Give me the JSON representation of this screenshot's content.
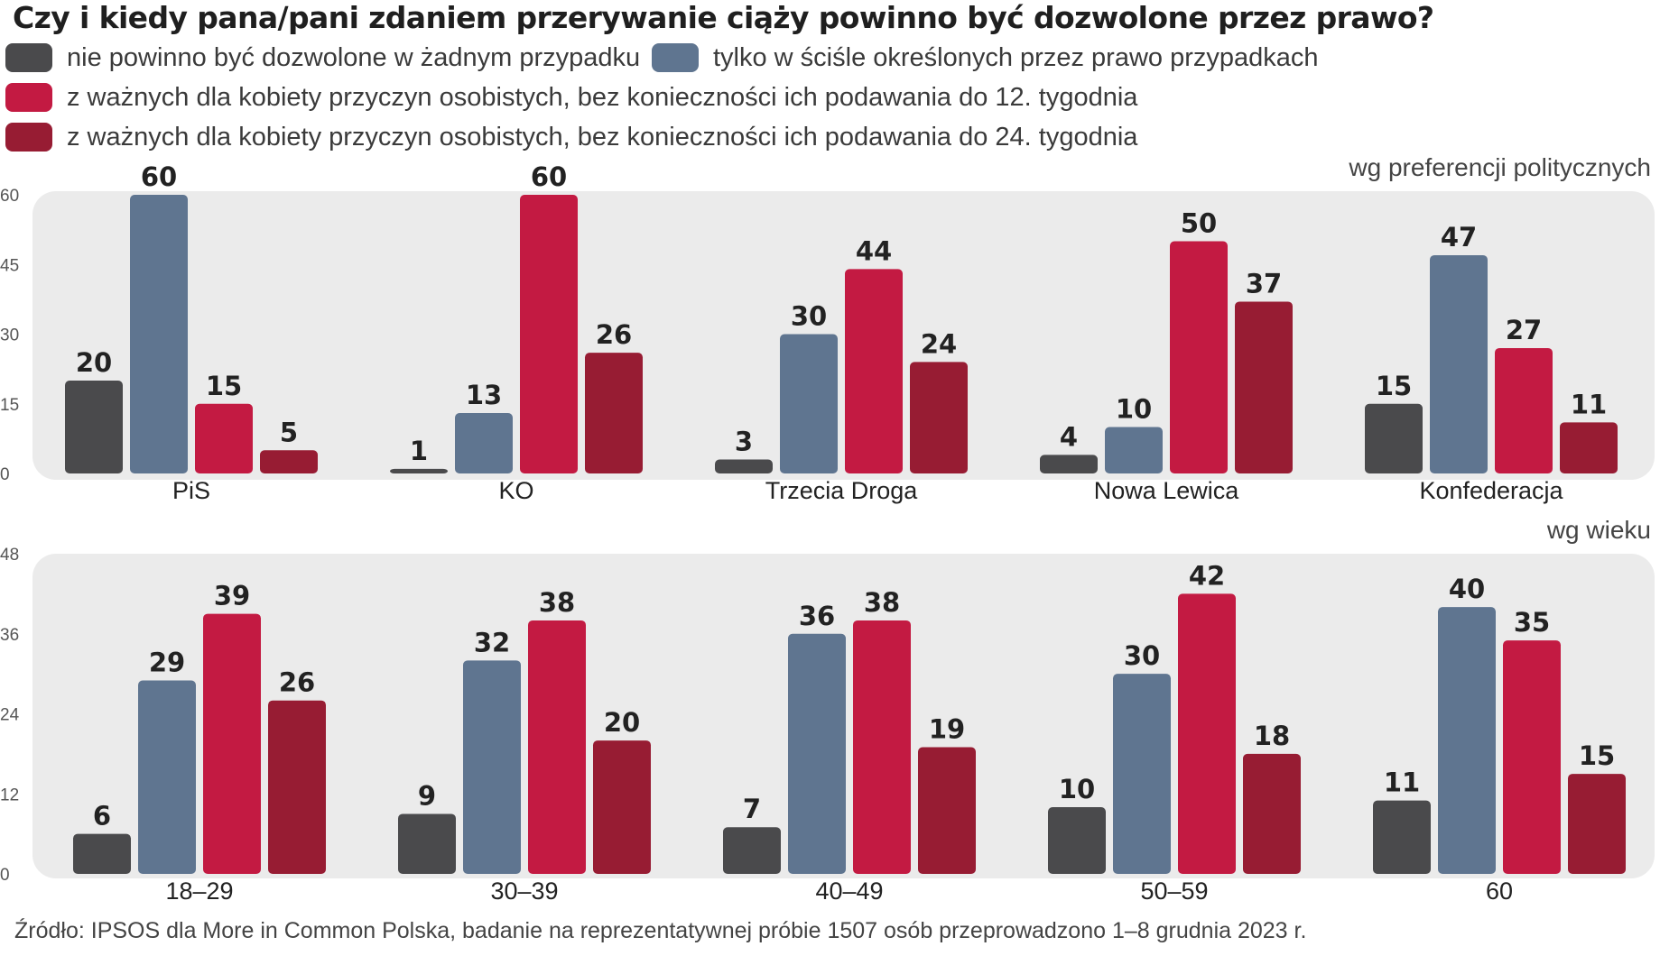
{
  "title": "Czy i kiedy pana/pani zdaniem przerywanie ciąży powinno być dozwolone przez prawo?",
  "legend": [
    {
      "label": "nie powinno być dozwolone w żadnym przypadku",
      "color": "#4a4a4c"
    },
    {
      "label": "tylko w ściśle określonych przez prawo przypadkach",
      "color": "#5f7590"
    },
    {
      "label": "z ważnych dla kobiety przyczyn osobistych, bez konieczności ich podawania do 12. tygodnia",
      "color": "#c31a42"
    },
    {
      "label": "z ważnych dla kobiety przyczyn osobistych, bez konieczności ich podawania do 24. tygodnia",
      "color": "#971c33"
    }
  ],
  "panel_background": "#ebebeb",
  "source": "Źródło: IPSOS dla More in Common Polska, badanie na reprezentatywnej próbie 1507 osób przeprowadzono 1–8 grudnia 2023 r.",
  "chart_data": [
    {
      "type": "bar",
      "subtitle": "wg preferencji politycznych",
      "categories": [
        "PiS",
        "KO",
        "Trzecia Droga",
        "Nowa Lewica",
        "Konfederacja"
      ],
      "yticks": [
        0,
        15,
        30,
        45,
        60
      ],
      "ylim": [
        0,
        60
      ],
      "series": [
        {
          "name": "nie powinno być dozwolone w żadnym przypadku",
          "values": [
            20,
            1,
            3,
            4,
            15
          ]
        },
        {
          "name": "tylko w ściśle określonych przez prawo przypadkach",
          "values": [
            60,
            13,
            30,
            10,
            47
          ]
        },
        {
          "name": "z ważnych dla kobiety przyczyn osobistych, bez konieczności ich podawania do 12. tygodnia",
          "values": [
            15,
            60,
            44,
            50,
            27
          ]
        },
        {
          "name": "z ważnych dla kobiety przyczyn osobistych, bez konieczności ich podawania do 24. tygodnia",
          "values": [
            5,
            26,
            24,
            37,
            11
          ]
        }
      ]
    },
    {
      "type": "bar",
      "subtitle": "wg wieku",
      "categories": [
        "18–29",
        "30–39",
        "40–49",
        "50–59",
        "60"
      ],
      "yticks": [
        0,
        12,
        24,
        36,
        48
      ],
      "ylim": [
        0,
        48
      ],
      "series": [
        {
          "name": "nie powinno być dozwolone w żadnym przypadku",
          "values": [
            6,
            9,
            7,
            10,
            11
          ]
        },
        {
          "name": "tylko w ściśle określonych przez prawo przypadkach",
          "values": [
            29,
            32,
            36,
            30,
            40
          ]
        },
        {
          "name": "z ważnych dla kobiety przyczyn osobistych, bez konieczności ich podawania do 12. tygodnia",
          "values": [
            39,
            38,
            38,
            42,
            35
          ]
        },
        {
          "name": "z ważnych dla kobiety przyczyn osobistych, bez konieczności ich podawania do 24. tygodnia",
          "values": [
            26,
            20,
            19,
            18,
            15
          ]
        }
      ]
    }
  ]
}
